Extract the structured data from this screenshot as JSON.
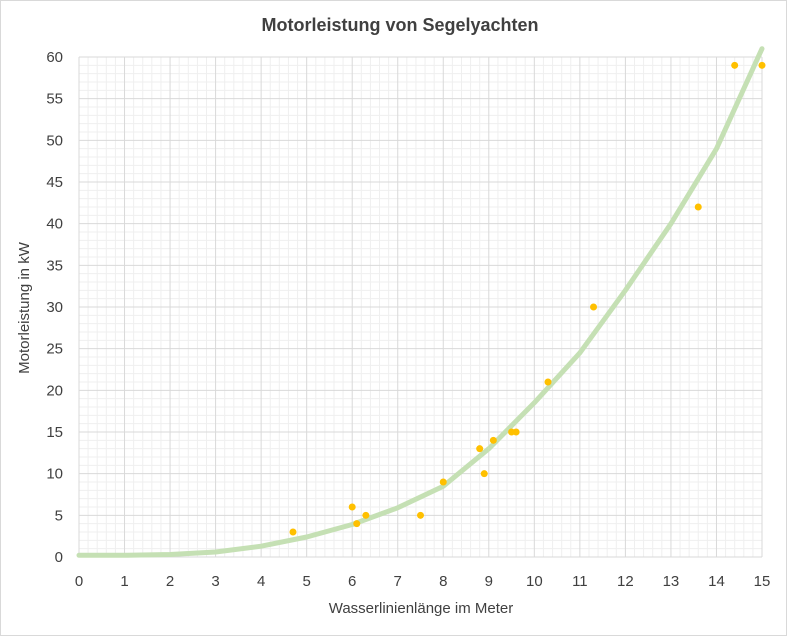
{
  "chart_data": {
    "type": "scatter",
    "title": "Motorleistung  von Segelyachten",
    "xlabel": "Wasserlinienlänge im Meter",
    "ylabel": "Motorleistung in kW",
    "xlim": [
      0,
      15
    ],
    "ylim": [
      0,
      60
    ],
    "xticks": [
      "0",
      "1",
      "2",
      "3",
      "4",
      "5",
      "6",
      "7",
      "8",
      "9",
      "10",
      "11",
      "12",
      "13",
      "14",
      "15"
    ],
    "yticks": [
      "0",
      "5",
      "10",
      "15",
      "20",
      "25",
      "30",
      "35",
      "40",
      "45",
      "50",
      "55",
      "60"
    ],
    "grid": {
      "major": true,
      "minor": true
    },
    "legend": "none",
    "colors": {
      "points": "#ffc000",
      "trend": "#c5e0b4",
      "grid_major": "#d9d9d9",
      "grid_minor": "#efefef"
    },
    "series": [
      {
        "kind": "points",
        "points": [
          [
            4.7,
            3
          ],
          [
            6.0,
            6
          ],
          [
            6.1,
            4
          ],
          [
            6.3,
            5
          ],
          [
            7.5,
            5
          ],
          [
            8.0,
            9
          ],
          [
            8.8,
            13
          ],
          [
            8.9,
            10
          ],
          [
            9.1,
            14
          ],
          [
            9.5,
            15
          ],
          [
            9.6,
            15
          ],
          [
            10.3,
            21
          ],
          [
            11.3,
            30
          ],
          [
            13.6,
            42
          ],
          [
            14.4,
            59
          ],
          [
            15.0,
            59
          ]
        ]
      },
      {
        "kind": "trendline",
        "points": [
          [
            0,
            0.2
          ],
          [
            1,
            0.2
          ],
          [
            2,
            0.3
          ],
          [
            3,
            0.6
          ],
          [
            4,
            1.3
          ],
          [
            5,
            2.4
          ],
          [
            6,
            3.9
          ],
          [
            7,
            5.9
          ],
          [
            8,
            8.5
          ],
          [
            9,
            13.0
          ],
          [
            10,
            18.5
          ],
          [
            11,
            24.5
          ],
          [
            12,
            32.0
          ],
          [
            13,
            40.0
          ],
          [
            14,
            49.0
          ],
          [
            15,
            61.0
          ]
        ]
      }
    ]
  }
}
